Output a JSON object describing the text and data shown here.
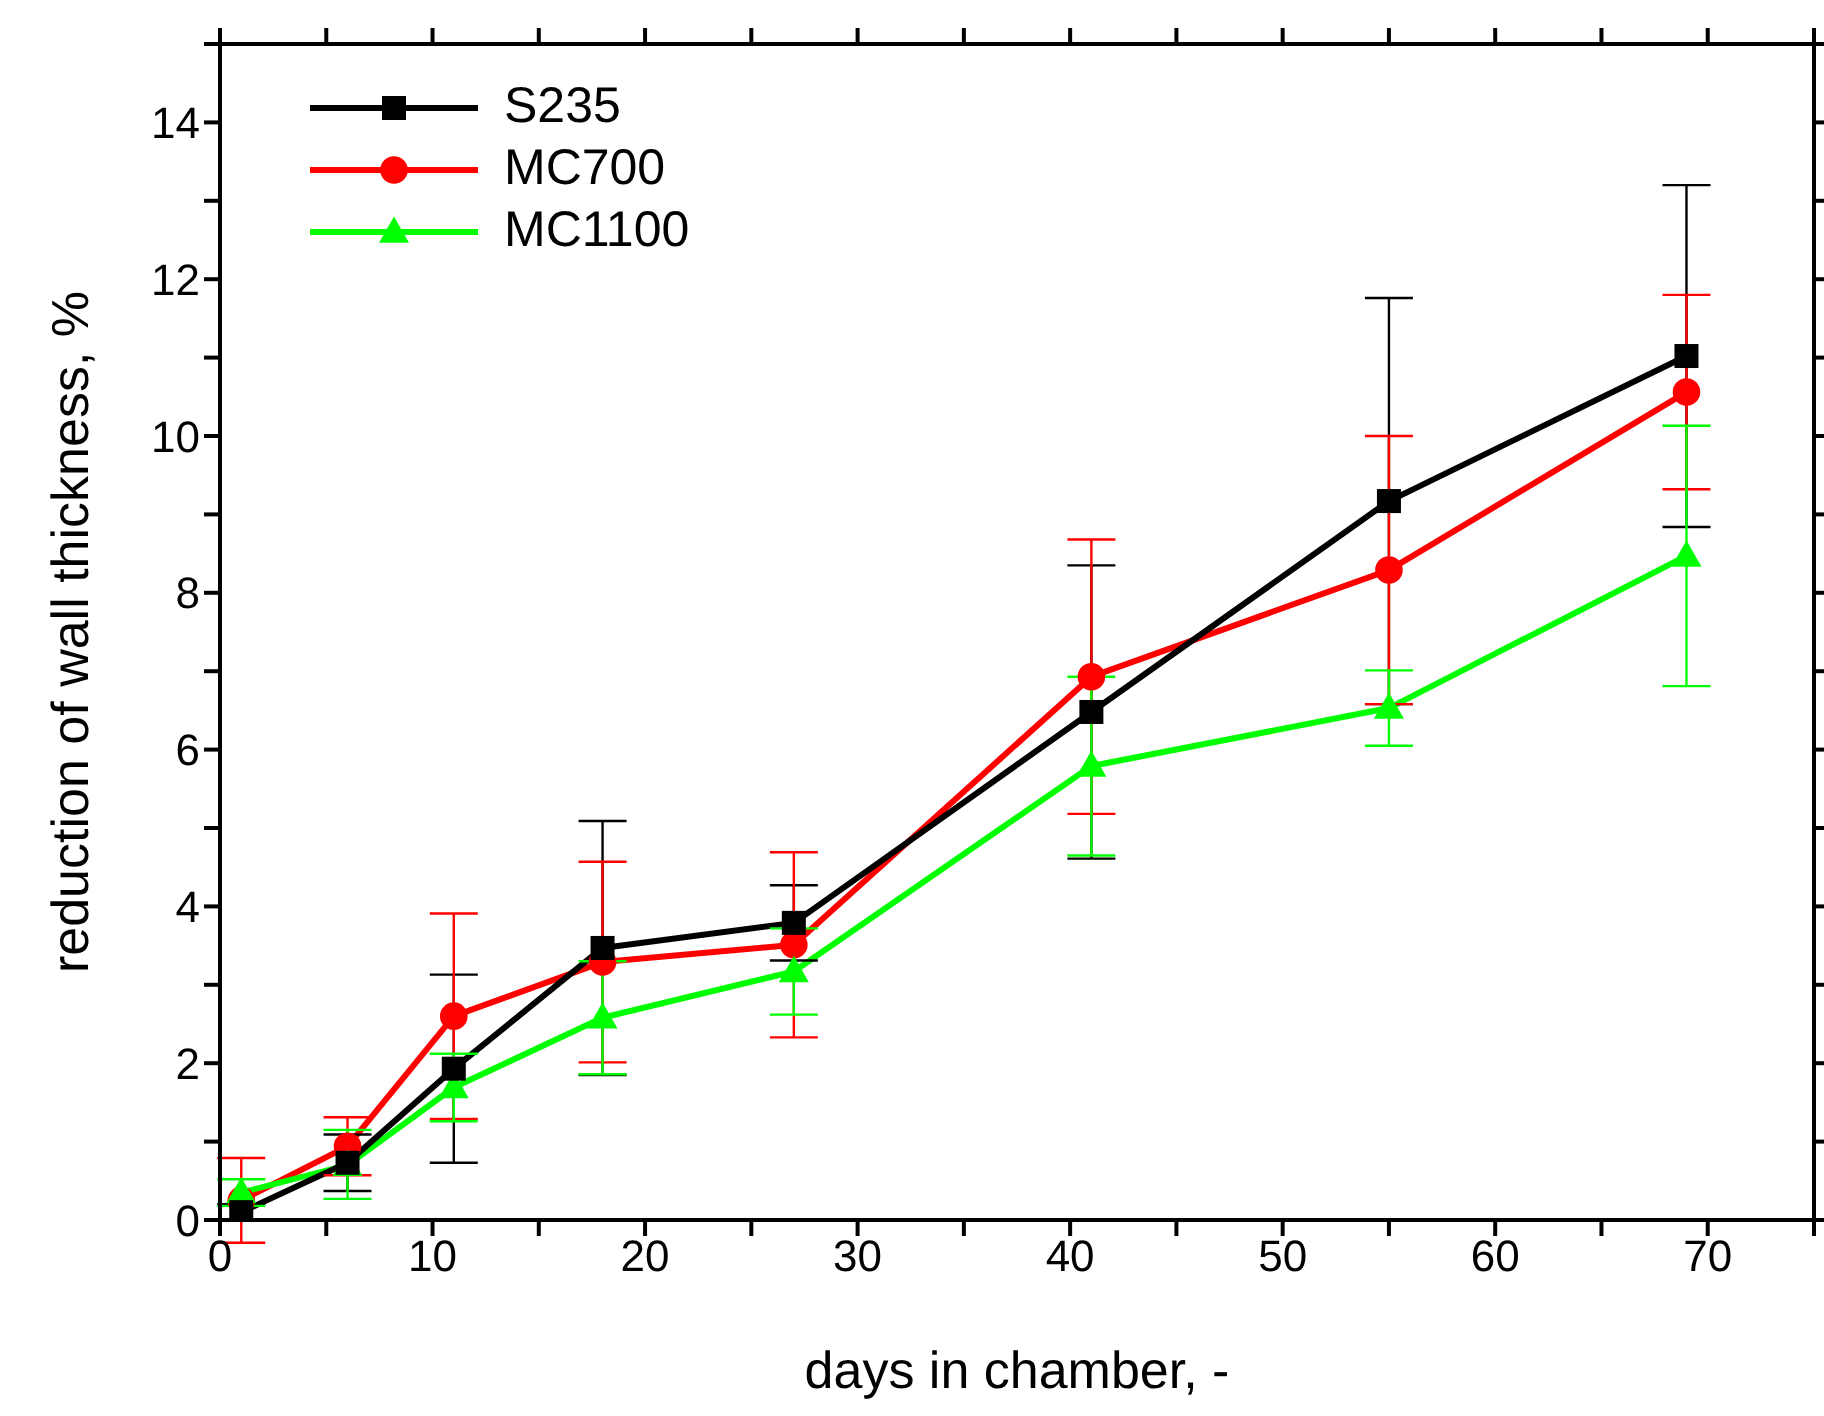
{
  "chart_data": {
    "type": "line",
    "xlabel": "days in chamber, -",
    "ylabel": "reduction of wall thickness, %",
    "x": [
      1,
      6,
      11,
      18,
      27,
      41,
      55,
      69
    ],
    "series": [
      {
        "name": "S235",
        "color": "#000000",
        "marker": "square",
        "values": [
          0.1,
          0.73,
          1.93,
          3.47,
          3.79,
          6.48,
          9.17,
          11.02
        ],
        "errors": [
          0.1,
          0.36,
          1.2,
          1.62,
          0.48,
          1.87,
          2.59,
          2.18
        ]
      },
      {
        "name": "MC700",
        "color": "#ff0000",
        "marker": "circle",
        "values": [
          0.25,
          0.94,
          2.6,
          3.29,
          3.51,
          6.93,
          8.29,
          10.56
        ],
        "errors": [
          0.54,
          0.37,
          1.31,
          1.28,
          1.18,
          1.75,
          1.71,
          1.24
        ]
      },
      {
        "name": "MC1100",
        "color": "#00ff00",
        "marker": "triangle",
        "values": [
          0.35,
          0.7,
          1.69,
          2.58,
          3.17,
          5.79,
          6.53,
          8.47
        ],
        "errors": [
          0.17,
          [
            0.27,
            1.15
          ],
          0.43,
          0.72,
          0.55,
          1.14,
          0.48,
          1.66
        ]
      }
    ],
    "xlim": [
      0,
      75
    ],
    "xticks": [
      0,
      {
        "value": 5,
        "label": null
      },
      10,
      {
        "value": 15,
        "label": null
      },
      20,
      {
        "value": 25,
        "label": null
      },
      30,
      {
        "value": 35,
        "label": null
      },
      40,
      {
        "value": 45,
        "label": null
      },
      50,
      {
        "value": 55,
        "label": null
      },
      60,
      {
        "value": 65,
        "label": null
      },
      70,
      {
        "value": 75,
        "label": null
      }
    ],
    "ylim": [
      0,
      15
    ],
    "yticks": [
      0,
      {
        "value": 1,
        "label": null
      },
      2,
      {
        "value": 3,
        "label": null
      },
      4,
      {
        "value": 5,
        "label": null
      },
      6,
      {
        "value": 7,
        "label": null
      },
      8,
      {
        "value": 9,
        "label": null
      },
      10,
      {
        "value": 11,
        "label": null
      },
      12,
      {
        "value": 13,
        "label": null
      },
      14,
      {
        "value": 15,
        "label": null
      }
    ],
    "legend": "top left",
    "line_style": "solid"
  }
}
